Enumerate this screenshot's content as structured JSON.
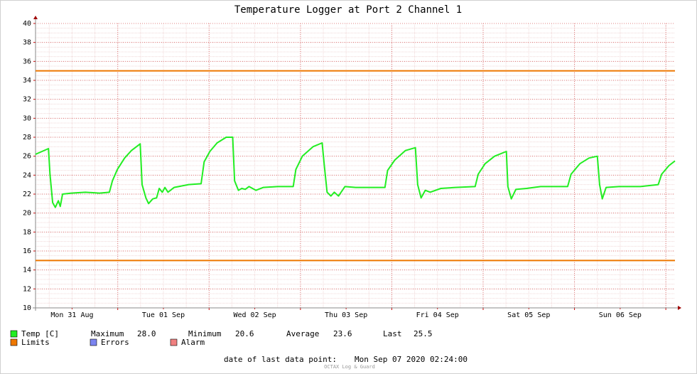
{
  "chart_data": {
    "type": "line",
    "title": "Temperature Logger at Port 2 Channel 1",
    "xlim": [
      2.4,
      170.4
    ],
    "xticks": [
      {
        "value": 12,
        "label": "Mon 31 Aug"
      },
      {
        "value": 36,
        "label": "Tue 01 Sep"
      },
      {
        "value": 60,
        "label": "Wed 02 Sep"
      },
      {
        "value": 84,
        "label": "Thu 03 Sep"
      },
      {
        "value": 108,
        "label": "Fri 04 Sep"
      },
      {
        "value": 132,
        "label": "Sat 05 Sep"
      },
      {
        "value": 156,
        "label": "Sun 06 Sep"
      }
    ],
    "x_major_grid": [
      24,
      48,
      72,
      96,
      120,
      144,
      168
    ],
    "x_minor_step": 6,
    "ylim": [
      10,
      40
    ],
    "yticks": [
      10,
      12,
      14,
      16,
      18,
      20,
      22,
      24,
      26,
      28,
      30,
      32,
      34,
      36,
      38,
      40
    ],
    "y_minor_step": 0.5,
    "grid": true,
    "series": [
      {
        "name": "Temp [C]",
        "color": "#22ee22",
        "x": [
          2.4,
          5.8,
          6.2,
          6.9,
          7.6,
          8.4,
          8.9,
          9.5,
          11.8,
          15.5,
          19.2,
          21.8,
          22.6,
          23.9,
          25.8,
          27.6,
          29.9,
          30.4,
          31.4,
          32.1,
          33.2,
          34.2,
          34.9,
          35.7,
          36.4,
          37.2,
          38.8,
          42.6,
          45.9,
          46.7,
          48.2,
          50.1,
          52.5,
          54.2,
          54.7,
          55.7,
          56.6,
          57.5,
          58.5,
          60.3,
          62.2,
          66.0,
          70.1,
          70.8,
          72.5,
          75.3,
          77.7,
          78.3,
          79.0,
          80.0,
          80.9,
          82.0,
          83.7,
          86.5,
          90.2,
          94.2,
          94.9,
          96.8,
          99.6,
          102.2,
          102.8,
          103.7,
          104.8,
          106.1,
          108.9,
          112.7,
          117.9,
          118.7,
          120.5,
          123.0,
          126.1,
          126.5,
          127.4,
          128.6,
          131.4,
          135.1,
          142.2,
          143.1,
          145.4,
          147.8,
          150.0,
          150.6,
          151.3,
          152.3,
          155.7,
          161.3,
          166.0,
          166.9,
          168.8,
          170.4
        ],
        "values": [
          26.2,
          26.8,
          24.1,
          21.1,
          20.6,
          21.3,
          20.7,
          22.0,
          22.1,
          22.2,
          22.1,
          22.2,
          23.4,
          24.6,
          25.8,
          26.6,
          27.3,
          23.0,
          21.6,
          21.0,
          21.5,
          21.6,
          22.6,
          22.2,
          22.7,
          22.2,
          22.7,
          23.0,
          23.1,
          25.4,
          26.5,
          27.4,
          28.0,
          28.0,
          23.4,
          22.4,
          22.6,
          22.5,
          22.8,
          22.4,
          22.7,
          22.8,
          22.8,
          24.6,
          26.0,
          27.0,
          27.4,
          24.9,
          22.2,
          21.8,
          22.2,
          21.8,
          22.8,
          22.7,
          22.7,
          22.7,
          24.5,
          25.6,
          26.6,
          26.9,
          23.0,
          21.6,
          22.4,
          22.2,
          22.6,
          22.7,
          22.8,
          24.1,
          25.2,
          26.0,
          26.5,
          22.8,
          21.5,
          22.5,
          22.6,
          22.8,
          22.8,
          24.1,
          25.2,
          25.8,
          26.0,
          23.0,
          21.5,
          22.7,
          22.8,
          22.8,
          23.0,
          24.1,
          25.0,
          25.5
        ]
      }
    ],
    "limits": {
      "name": "Limits",
      "color": "#ee7700",
      "values": [
        35,
        15
      ]
    },
    "legend_extra": [
      {
        "name": "Errors",
        "color": "#7b84f0"
      },
      {
        "name": "Alarm",
        "color": "#f08080"
      }
    ],
    "stats": {
      "labels": [
        "Maximum",
        "Minimum",
        "Average",
        "Last"
      ],
      "values": [
        28.0,
        20.6,
        23.6,
        25.5
      ],
      "value_labels": [
        "28.0",
        "20.6",
        "23.6",
        "25.5"
      ]
    },
    "footer_label": "date of last data point:",
    "last_date": "Mon Sep 07 2020 02:24:00",
    "watermark": "OCTAX Log & Guard"
  }
}
